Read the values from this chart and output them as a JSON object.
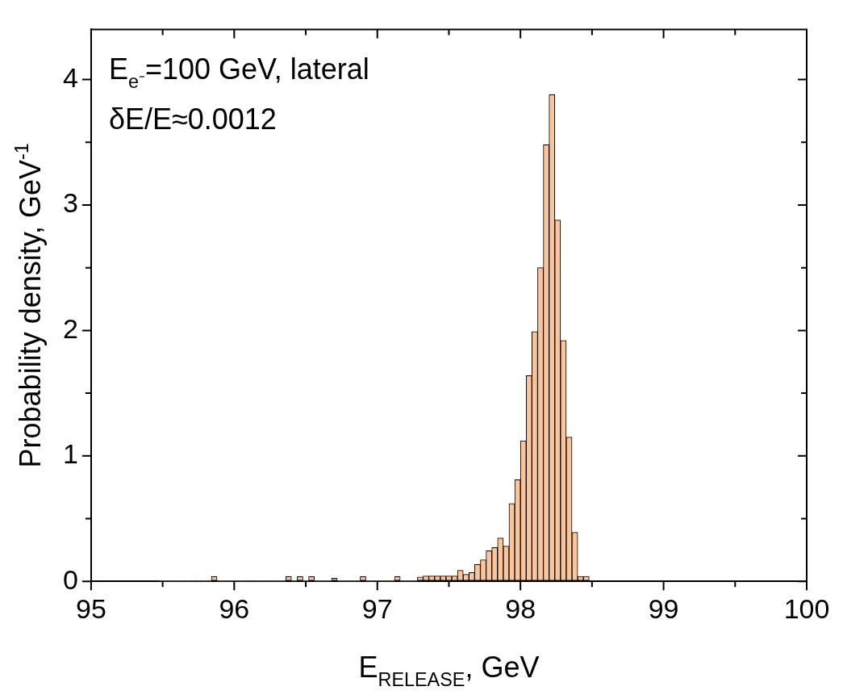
{
  "chart_data": {
    "type": "histogram",
    "xlabel": "E$_{RELEASE}$, GeV",
    "ylabel": "Probability density, GeV$^{-1}$",
    "annotations": [
      "E$_{e⁻}$=100 GeV, lateral",
      "δE/E≈0.0012"
    ],
    "bins": [
      95.48,
      95.52,
      95.56,
      95.6,
      95.64,
      95.68,
      95.72,
      95.76,
      95.8,
      95.84,
      95.88,
      95.92,
      95.96,
      96,
      96.04,
      96.08,
      96.12,
      96.16,
      96.2,
      96.24,
      96.28,
      96.32,
      96.36,
      96.4,
      96.44,
      96.48,
      96.52,
      96.56,
      96.6,
      96.64,
      96.68,
      96.72,
      96.76,
      96.8,
      96.84,
      96.88,
      96.92,
      96.96,
      97,
      97.04,
      97.08,
      97.12,
      97.16,
      97.2,
      97.24,
      97.28,
      97.32,
      97.36,
      97.4,
      97.44,
      97.48,
      97.52,
      97.56,
      97.6,
      97.64,
      97.68,
      97.72,
      97.76,
      97.8,
      97.84,
      97.88,
      97.92,
      97.96,
      98,
      98.04,
      98.08,
      98.12,
      98.16,
      98.2,
      98.24,
      98.28,
      98.32,
      98.36,
      98.4,
      98.44,
      98.48
    ],
    "values": [
      0,
      0,
      0,
      0,
      0,
      0,
      0,
      0,
      0,
      0.038,
      0,
      0,
      0,
      0,
      0,
      0,
      0,
      0,
      0,
      0,
      0,
      0,
      0.038,
      0,
      0.038,
      0,
      0.038,
      0,
      0,
      0,
      0.025,
      0,
      0,
      0,
      0,
      0.038,
      0,
      0,
      0,
      0,
      0,
      0.038,
      0,
      0,
      0,
      0.035,
      0.042,
      0.042,
      0.042,
      0.042,
      0.042,
      0.042,
      0.087,
      0.055,
      0.07,
      0.134,
      0.172,
      0.244,
      0.27,
      0.345,
      0.28,
      0.62,
      0.81,
      1.12,
      1.64,
      1.99,
      2.5,
      3.48,
      3.88,
      2.88,
      1.92,
      1.15,
      0.39,
      0.04,
      0.04
    ],
    "color": "#fbc59b",
    "xlim": [
      95,
      100
    ],
    "xticks": [
      95,
      {
        "value": 95.5,
        "label": null
      },
      96,
      {
        "value": 96.5,
        "label": null
      },
      97,
      {
        "value": 97.5,
        "label": null
      },
      98,
      {
        "value": 98.5,
        "label": null
      },
      99,
      {
        "value": 99.5,
        "label": null
      },
      100
    ],
    "ylim": [
      0,
      4.4
    ],
    "yticks": [
      0,
      {
        "value": 0.5,
        "label": null
      },
      1,
      {
        "value": 1.5,
        "label": null
      },
      2,
      {
        "value": 2.5,
        "label": null
      },
      3,
      {
        "value": 3.5,
        "label": null
      },
      4
    ]
  }
}
